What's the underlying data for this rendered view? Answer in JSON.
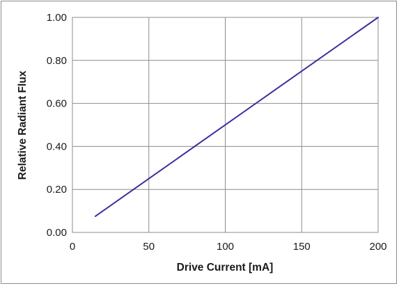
{
  "chart_data": {
    "type": "line",
    "title": "",
    "xlabel": "Drive Current [mA]",
    "ylabel": "Relative Radiant Flux",
    "xlim": [
      0,
      200
    ],
    "ylim": [
      0,
      1
    ],
    "x_ticks": [
      "0",
      "50",
      "100",
      "150",
      "200"
    ],
    "y_ticks": [
      "0.00",
      "0.20",
      "0.40",
      "0.60",
      "0.80",
      "1.00"
    ],
    "grid": true,
    "legend": "none",
    "series": [
      {
        "color": "#3a2f9c",
        "x": [
          15,
          200
        ],
        "y": [
          0.075,
          1.0
        ]
      }
    ]
  }
}
